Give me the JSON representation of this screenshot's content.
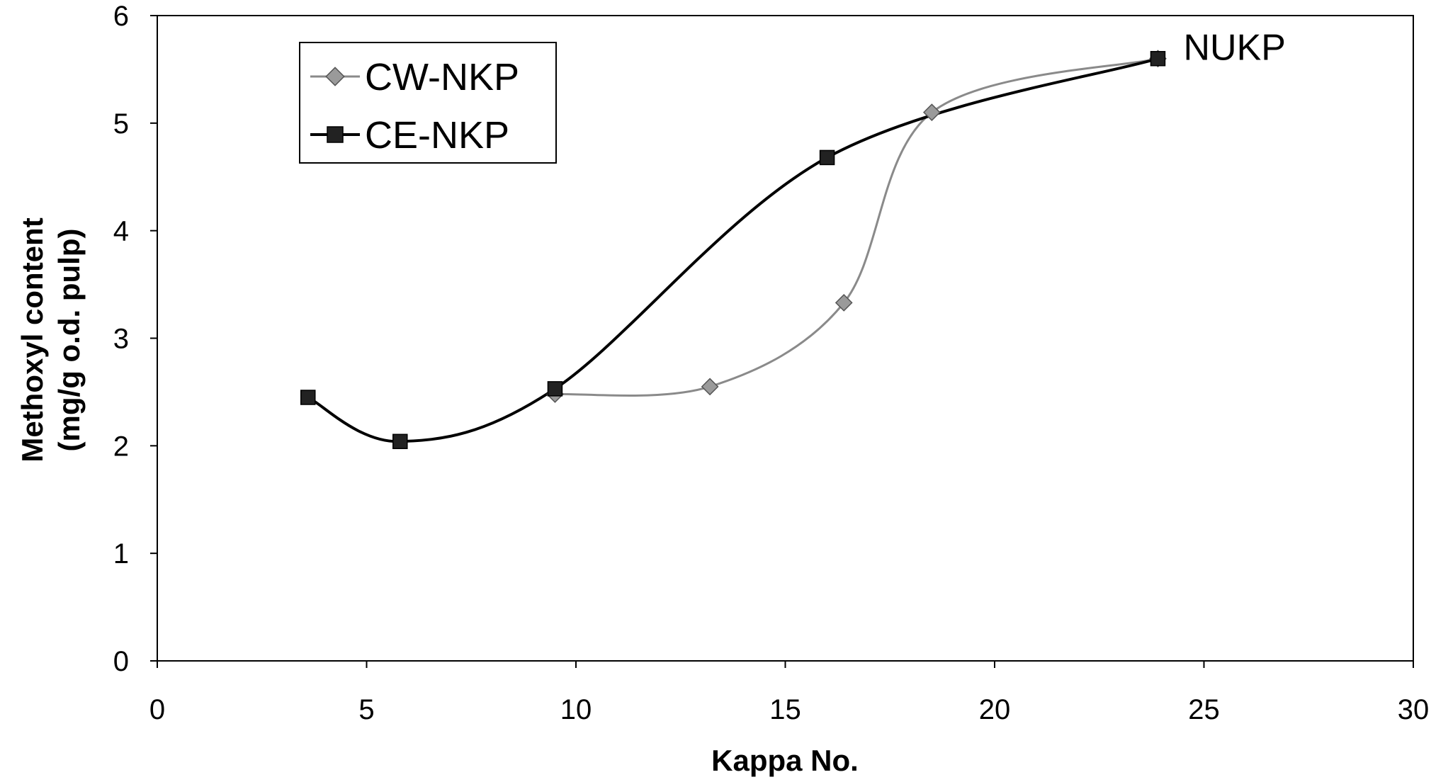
{
  "chart_data": {
    "type": "line",
    "xlabel": "Kappa No.",
    "ylabel_line1": "Methoxyl content",
    "ylabel_line2": "(mg/g o.d. pulp)",
    "xlim": [
      0,
      30
    ],
    "ylim": [
      0,
      6
    ],
    "xticks": [
      0,
      5,
      10,
      15,
      20,
      25,
      30
    ],
    "yticks": [
      0,
      1,
      2,
      3,
      4,
      5,
      6
    ],
    "grid": false,
    "legend_position": "top-left",
    "series": [
      {
        "name": "CW-NKP",
        "marker": "diamond",
        "color": "#8a8a8a",
        "x": [
          9.5,
          13.2,
          16.4,
          18.5,
          23.9
        ],
        "y": [
          2.48,
          2.55,
          3.33,
          5.1,
          5.6
        ]
      },
      {
        "name": "CE-NKP",
        "marker": "square",
        "color": "#000000",
        "x": [
          3.6,
          5.8,
          9.5,
          16.0,
          23.9
        ],
        "y": [
          2.45,
          2.04,
          2.53,
          4.68,
          5.6
        ]
      }
    ],
    "annotations": [
      {
        "text": "NUKP",
        "x": 23.9,
        "y": 5.6
      }
    ]
  }
}
